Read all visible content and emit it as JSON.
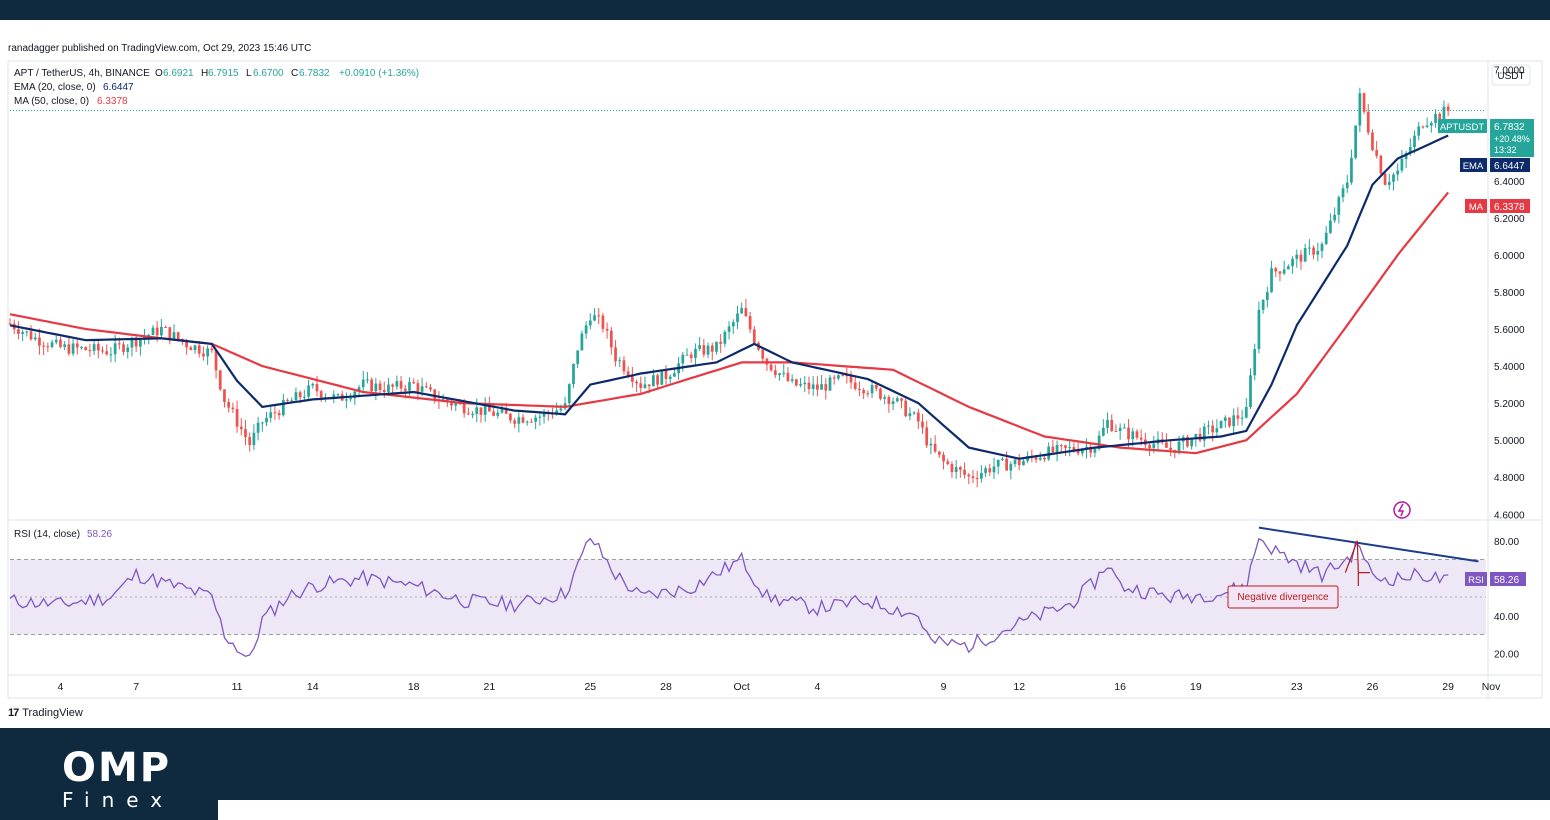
{
  "header": {
    "published": "ranadagger published on TradingView.com, Oct 29, 2023 15:46 UTC",
    "symbol_line": "APT / TetherUS, 4h, BINANCE",
    "ohlc": [
      {
        "key": "O",
        "value": "6.6921"
      },
      {
        "key": "H",
        "value": "6.7915"
      },
      {
        "key": "L",
        "value": "6.6700"
      },
      {
        "key": "C",
        "value": "6.7832"
      }
    ],
    "change": "+0.0910 (+1.36%)",
    "ema_label": "EMA (20, close, 0)",
    "ema_value": "6.6447",
    "ma_label": "MA (50, close, 0)",
    "ma_value": "6.3378",
    "rsi_label": "RSI (14, close)",
    "rsi_value": "58.26"
  },
  "colors": {
    "up": "#26a69a",
    "down": "#ef5350",
    "ema": "#0d2b6b",
    "ma": "#e53944",
    "rsi": "#7e57c2",
    "rsi_band": "#ede7f6",
    "trendline": "#1e3c8c",
    "annotation": "#b71c1c",
    "brand_bg": "#0f2a3f"
  },
  "price_axis": {
    "unit": "USDT",
    "ticks": [
      "4.6000",
      "4.8000",
      "5.0000",
      "5.2000",
      "5.4000",
      "5.6000",
      "5.8000",
      "6.0000",
      "6.2000",
      "6.4000",
      "7.0000"
    ],
    "tags": {
      "symbol": "APTUSDT",
      "price": "6.7832",
      "pct": "+20.48%",
      "countdown": "13:32",
      "ema_tag": "EMA",
      "ema_value": "6.6447",
      "ma_tag": "MA",
      "ma_value": "6.3378"
    }
  },
  "rsi_axis": {
    "ticks": [
      "20.00",
      "40.00",
      "80.00"
    ],
    "tag": "RSI",
    "tag_value": "58.26",
    "annotation": "Negative divergence"
  },
  "time_axis": {
    "labels": [
      "4",
      "7",
      "11",
      "14",
      "18",
      "21",
      "25",
      "28",
      "Oct",
      "4",
      "9",
      "12",
      "16",
      "19",
      "23",
      "26",
      "29",
      "Nov"
    ]
  },
  "watermark": {
    "tv": "TradingView",
    "brand": "OMP",
    "brand_sub": "Finex"
  },
  "chart_data": {
    "type": "candlestick",
    "title": "APT / TetherUS, 4h, BINANCE",
    "ylim": [
      4.58,
      7.02
    ],
    "x_range_days": [
      2,
      32.5
    ],
    "anchors": [
      {
        "day": 2.0,
        "price": 5.63
      },
      {
        "day": 3.0,
        "price": 5.55
      },
      {
        "day": 4.0,
        "price": 5.5
      },
      {
        "day": 5.0,
        "price": 5.49
      },
      {
        "day": 6.0,
        "price": 5.48
      },
      {
        "day": 7.0,
        "price": 5.54
      },
      {
        "day": 8.0,
        "price": 5.6
      },
      {
        "day": 9.0,
        "price": 5.52
      },
      {
        "day": 10.0,
        "price": 5.47
      },
      {
        "day": 10.5,
        "price": 5.22
      },
      {
        "day": 11.0,
        "price": 5.1
      },
      {
        "day": 11.5,
        "price": 4.98
      },
      {
        "day": 12.0,
        "price": 5.1
      },
      {
        "day": 13.0,
        "price": 5.2
      },
      {
        "day": 14.0,
        "price": 5.28
      },
      {
        "day": 15.0,
        "price": 5.22
      },
      {
        "day": 16.0,
        "price": 5.3
      },
      {
        "day": 17.0,
        "price": 5.28
      },
      {
        "day": 18.0,
        "price": 5.3
      },
      {
        "day": 19.0,
        "price": 5.22
      },
      {
        "day": 20.0,
        "price": 5.18
      },
      {
        "day": 21.0,
        "price": 5.15
      },
      {
        "day": 22.0,
        "price": 5.12
      },
      {
        "day": 23.0,
        "price": 5.13
      },
      {
        "day": 24.0,
        "price": 5.18
      },
      {
        "day": 24.5,
        "price": 5.5
      },
      {
        "day": 25.0,
        "price": 5.68
      },
      {
        "day": 25.5,
        "price": 5.62
      },
      {
        "day": 26.0,
        "price": 5.45
      },
      {
        "day": 27.0,
        "price": 5.3
      },
      {
        "day": 28.0,
        "price": 5.35
      },
      {
        "day": 29.0,
        "price": 5.47
      },
      {
        "day": 30.0,
        "price": 5.5
      },
      {
        "day": 31.0,
        "price": 5.7
      },
      {
        "day": 31.5,
        "price": 5.55
      },
      {
        "day": 32.0,
        "price": 5.42
      },
      {
        "day": 33.0,
        "price": 5.3
      },
      {
        "day": 34.0,
        "price": 5.28
      },
      {
        "day": 35.0,
        "price": 5.33
      },
      {
        "day": 36.0,
        "price": 5.28
      },
      {
        "day": 37.0,
        "price": 5.22
      },
      {
        "day": 38.0,
        "price": 5.1
      },
      {
        "day": 38.5,
        "price": 4.95
      },
      {
        "day": 39.0,
        "price": 4.88
      },
      {
        "day": 40.0,
        "price": 4.8
      },
      {
        "day": 41.0,
        "price": 4.86
      },
      {
        "day": 42.0,
        "price": 4.88
      },
      {
        "day": 43.0,
        "price": 4.93
      },
      {
        "day": 44.0,
        "price": 4.95
      },
      {
        "day": 45.0,
        "price": 4.97
      },
      {
        "day": 45.5,
        "price": 5.1
      },
      {
        "day": 46.0,
        "price": 5.05
      },
      {
        "day": 47.0,
        "price": 5.0
      },
      {
        "day": 48.0,
        "price": 4.95
      },
      {
        "day": 49.0,
        "price": 5.02
      },
      {
        "day": 50.0,
        "price": 5.08
      },
      {
        "day": 51.0,
        "price": 5.15
      },
      {
        "day": 51.5,
        "price": 5.7
      },
      {
        "day": 52.0,
        "price": 5.9
      },
      {
        "day": 53.0,
        "price": 5.98
      },
      {
        "day": 54.0,
        "price": 6.05
      },
      {
        "day": 55.0,
        "price": 6.4
      },
      {
        "day": 55.5,
        "price": 6.85
      },
      {
        "day": 56.0,
        "price": 6.6
      },
      {
        "day": 56.5,
        "price": 6.4
      },
      {
        "day": 57.0,
        "price": 6.45
      },
      {
        "day": 58.0,
        "price": 6.72
      },
      {
        "day": 59.0,
        "price": 6.78
      }
    ],
    "ema20_label_value": 6.6447,
    "ma50_label_value": 6.3378,
    "ema20": [
      {
        "day": 2,
        "price": 5.62
      },
      {
        "day": 5,
        "price": 5.54
      },
      {
        "day": 8,
        "price": 5.55
      },
      {
        "day": 10,
        "price": 5.52
      },
      {
        "day": 11,
        "price": 5.32
      },
      {
        "day": 12,
        "price": 5.18
      },
      {
        "day": 14,
        "price": 5.22
      },
      {
        "day": 18,
        "price": 5.26
      },
      {
        "day": 22,
        "price": 5.16
      },
      {
        "day": 24,
        "price": 5.14
      },
      {
        "day": 25,
        "price": 5.3
      },
      {
        "day": 27,
        "price": 5.36
      },
      {
        "day": 30,
        "price": 5.42
      },
      {
        "day": 31.5,
        "price": 5.52
      },
      {
        "day": 33,
        "price": 5.42
      },
      {
        "day": 36,
        "price": 5.33
      },
      {
        "day": 38,
        "price": 5.2
      },
      {
        "day": 40,
        "price": 4.96
      },
      {
        "day": 42,
        "price": 4.9
      },
      {
        "day": 45,
        "price": 4.96
      },
      {
        "day": 48,
        "price": 5.0
      },
      {
        "day": 50,
        "price": 5.02
      },
      {
        "day": 51,
        "price": 5.05
      },
      {
        "day": 52,
        "price": 5.3
      },
      {
        "day": 53,
        "price": 5.62
      },
      {
        "day": 55,
        "price": 6.05
      },
      {
        "day": 56,
        "price": 6.38
      },
      {
        "day": 57,
        "price": 6.52
      },
      {
        "day": 59,
        "price": 6.6447
      }
    ],
    "ma50": [
      {
        "day": 2,
        "price": 5.68
      },
      {
        "day": 5,
        "price": 5.6
      },
      {
        "day": 8,
        "price": 5.55
      },
      {
        "day": 10,
        "price": 5.52
      },
      {
        "day": 12,
        "price": 5.4
      },
      {
        "day": 16,
        "price": 5.26
      },
      {
        "day": 20,
        "price": 5.2
      },
      {
        "day": 24,
        "price": 5.18
      },
      {
        "day": 27,
        "price": 5.25
      },
      {
        "day": 31,
        "price": 5.42
      },
      {
        "day": 33,
        "price": 5.42
      },
      {
        "day": 37,
        "price": 5.38
      },
      {
        "day": 40,
        "price": 5.18
      },
      {
        "day": 43,
        "price": 5.02
      },
      {
        "day": 46,
        "price": 4.96
      },
      {
        "day": 49,
        "price": 4.93
      },
      {
        "day": 51,
        "price": 5.0
      },
      {
        "day": 53,
        "price": 5.25
      },
      {
        "day": 55,
        "price": 5.62
      },
      {
        "day": 57,
        "price": 6.0
      },
      {
        "day": 59,
        "price": 6.3378
      }
    ],
    "rsi": {
      "name": "RSI (14, close)",
      "ylim": [
        10,
        90
      ],
      "band": [
        30,
        70
      ],
      "midline": 50,
      "anchors": [
        {
          "day": 2,
          "value": 48
        },
        {
          "day": 4,
          "value": 46
        },
        {
          "day": 6,
          "value": 50
        },
        {
          "day": 7,
          "value": 62
        },
        {
          "day": 8,
          "value": 58
        },
        {
          "day": 10,
          "value": 50
        },
        {
          "day": 10.5,
          "value": 30
        },
        {
          "day": 11.5,
          "value": 16
        },
        {
          "day": 12,
          "value": 38
        },
        {
          "day": 13,
          "value": 50
        },
        {
          "day": 14,
          "value": 56
        },
        {
          "day": 16,
          "value": 60
        },
        {
          "day": 18,
          "value": 56
        },
        {
          "day": 20,
          "value": 48
        },
        {
          "day": 22,
          "value": 46
        },
        {
          "day": 24,
          "value": 52
        },
        {
          "day": 24.5,
          "value": 66
        },
        {
          "day": 25,
          "value": 82
        },
        {
          "day": 26,
          "value": 62
        },
        {
          "day": 27,
          "value": 50
        },
        {
          "day": 29,
          "value": 55
        },
        {
          "day": 31,
          "value": 70
        },
        {
          "day": 32,
          "value": 50
        },
        {
          "day": 34,
          "value": 44
        },
        {
          "day": 36,
          "value": 48
        },
        {
          "day": 38,
          "value": 40
        },
        {
          "day": 38.5,
          "value": 26
        },
        {
          "day": 40,
          "value": 24
        },
        {
          "day": 42,
          "value": 36
        },
        {
          "day": 44,
          "value": 46
        },
        {
          "day": 45,
          "value": 58
        },
        {
          "day": 45.5,
          "value": 68
        },
        {
          "day": 46,
          "value": 56
        },
        {
          "day": 48,
          "value": 50
        },
        {
          "day": 50,
          "value": 52
        },
        {
          "day": 51,
          "value": 56
        },
        {
          "day": 51.5,
          "value": 82
        },
        {
          "day": 52,
          "value": 76
        },
        {
          "day": 53,
          "value": 68
        },
        {
          "day": 54,
          "value": 62
        },
        {
          "day": 55,
          "value": 70
        },
        {
          "day": 55.5,
          "value": 78
        },
        {
          "day": 56,
          "value": 60
        },
        {
          "day": 57,
          "value": 60
        },
        {
          "day": 58,
          "value": 62
        },
        {
          "day": 59,
          "value": 58.26
        }
      ]
    }
  }
}
